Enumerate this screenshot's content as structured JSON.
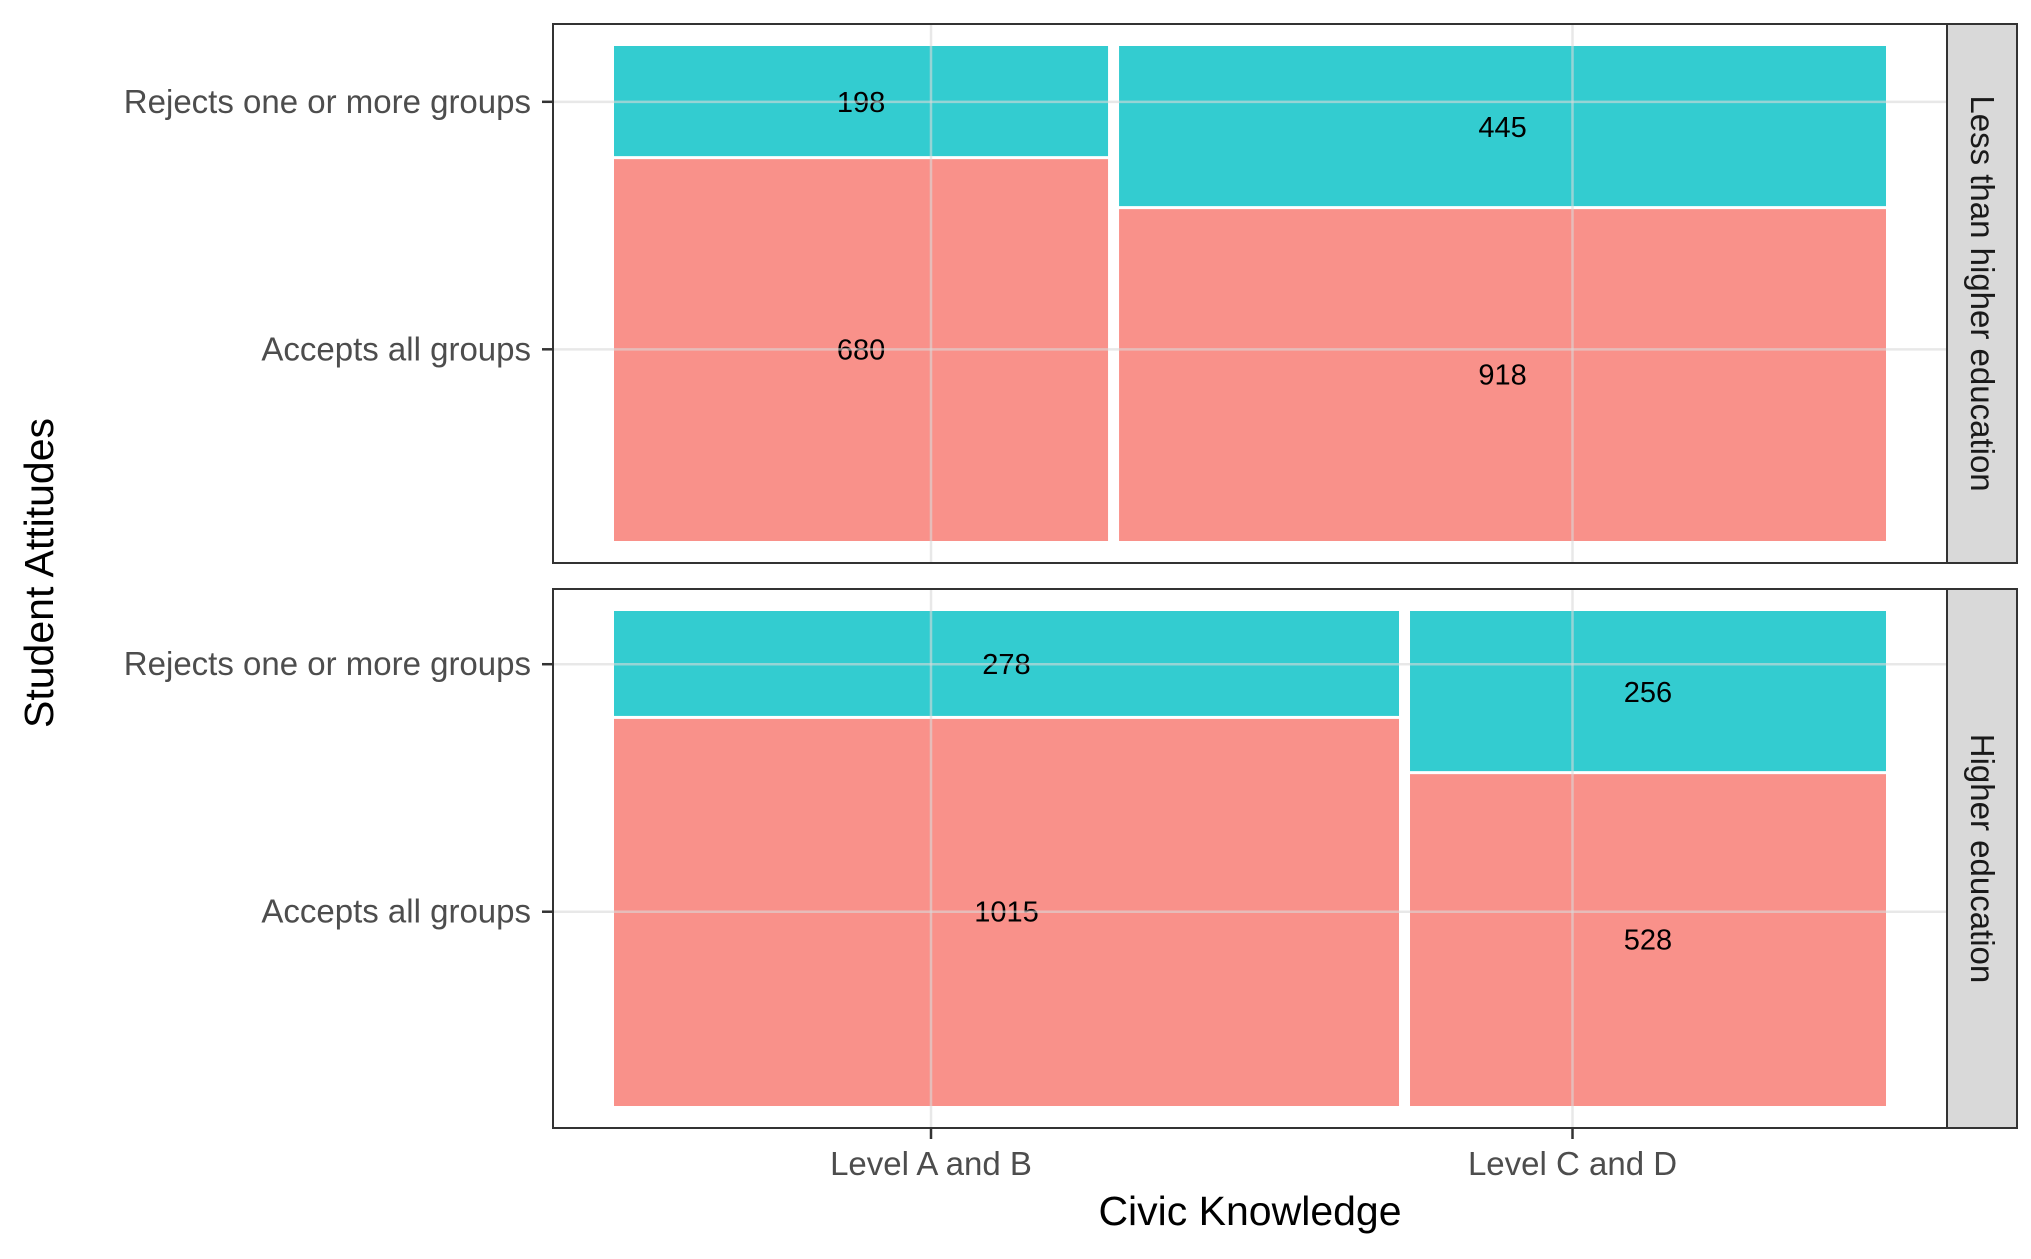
{
  "chart_data": {
    "type": "mosaic",
    "xlabel": "Civic Knowledge",
    "ylabel": "Student Attitudes",
    "x_categories": [
      "Level A and B",
      "Level C and D"
    ],
    "y_categories": [
      "Accepts all groups",
      "Rejects one or more groups"
    ],
    "panels": [
      {
        "strip_label": "Less than higher education",
        "cells": [
          {
            "x": "Level A and B",
            "accepts": 680,
            "rejects": 198
          },
          {
            "x": "Level C and D",
            "accepts": 918,
            "rejects": 445
          }
        ]
      },
      {
        "strip_label": "Higher education",
        "cells": [
          {
            "x": "Level A and B",
            "accepts": 1015,
            "rejects": 278
          },
          {
            "x": "Level C and D",
            "accepts": 528,
            "rejects": 256
          }
        ]
      }
    ],
    "colors": {
      "Accepts all groups": "#F8766D",
      "Rejects one or more groups": "#00BFC4"
    },
    "grid": true,
    "legend": "none"
  }
}
